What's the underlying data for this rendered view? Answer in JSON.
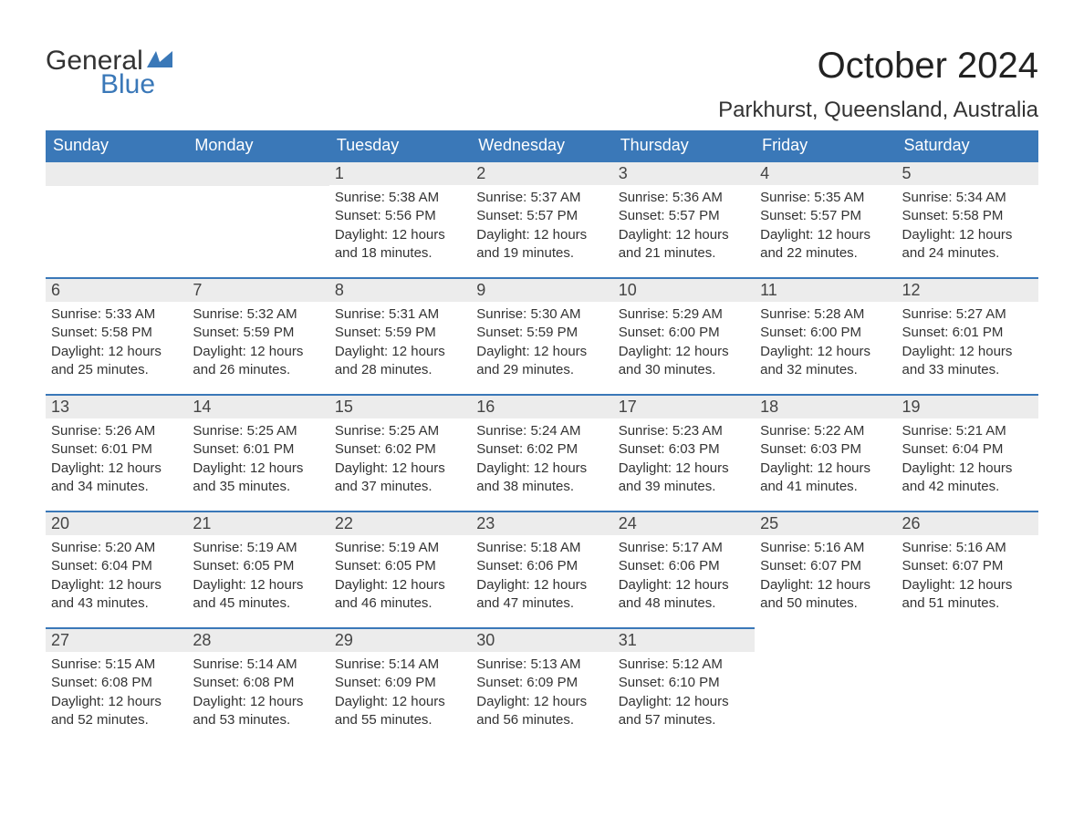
{
  "brand": {
    "word1": "General",
    "word2": "Blue",
    "color_text": "#333333",
    "color_blue": "#3a78b8"
  },
  "title": "October 2024",
  "location": "Parkhurst, Queensland, Australia",
  "colors": {
    "header_bg": "#3a78b8",
    "header_text": "#ffffff",
    "daynum_bg": "#ececec",
    "daynum_border": "#3a78b8",
    "body_text": "#333333",
    "page_bg": "#ffffff"
  },
  "day_headers": [
    "Sunday",
    "Monday",
    "Tuesday",
    "Wednesday",
    "Thursday",
    "Friday",
    "Saturday"
  ],
  "weeks": [
    [
      null,
      null,
      {
        "n": "1",
        "sunrise": "Sunrise: 5:38 AM",
        "sunset": "Sunset: 5:56 PM",
        "day1": "Daylight: 12 hours",
        "day2": "and 18 minutes."
      },
      {
        "n": "2",
        "sunrise": "Sunrise: 5:37 AM",
        "sunset": "Sunset: 5:57 PM",
        "day1": "Daylight: 12 hours",
        "day2": "and 19 minutes."
      },
      {
        "n": "3",
        "sunrise": "Sunrise: 5:36 AM",
        "sunset": "Sunset: 5:57 PM",
        "day1": "Daylight: 12 hours",
        "day2": "and 21 minutes."
      },
      {
        "n": "4",
        "sunrise": "Sunrise: 5:35 AM",
        "sunset": "Sunset: 5:57 PM",
        "day1": "Daylight: 12 hours",
        "day2": "and 22 minutes."
      },
      {
        "n": "5",
        "sunrise": "Sunrise: 5:34 AM",
        "sunset": "Sunset: 5:58 PM",
        "day1": "Daylight: 12 hours",
        "day2": "and 24 minutes."
      }
    ],
    [
      {
        "n": "6",
        "sunrise": "Sunrise: 5:33 AM",
        "sunset": "Sunset: 5:58 PM",
        "day1": "Daylight: 12 hours",
        "day2": "and 25 minutes."
      },
      {
        "n": "7",
        "sunrise": "Sunrise: 5:32 AM",
        "sunset": "Sunset: 5:59 PM",
        "day1": "Daylight: 12 hours",
        "day2": "and 26 minutes."
      },
      {
        "n": "8",
        "sunrise": "Sunrise: 5:31 AM",
        "sunset": "Sunset: 5:59 PM",
        "day1": "Daylight: 12 hours",
        "day2": "and 28 minutes."
      },
      {
        "n": "9",
        "sunrise": "Sunrise: 5:30 AM",
        "sunset": "Sunset: 5:59 PM",
        "day1": "Daylight: 12 hours",
        "day2": "and 29 minutes."
      },
      {
        "n": "10",
        "sunrise": "Sunrise: 5:29 AM",
        "sunset": "Sunset: 6:00 PM",
        "day1": "Daylight: 12 hours",
        "day2": "and 30 minutes."
      },
      {
        "n": "11",
        "sunrise": "Sunrise: 5:28 AM",
        "sunset": "Sunset: 6:00 PM",
        "day1": "Daylight: 12 hours",
        "day2": "and 32 minutes."
      },
      {
        "n": "12",
        "sunrise": "Sunrise: 5:27 AM",
        "sunset": "Sunset: 6:01 PM",
        "day1": "Daylight: 12 hours",
        "day2": "and 33 minutes."
      }
    ],
    [
      {
        "n": "13",
        "sunrise": "Sunrise: 5:26 AM",
        "sunset": "Sunset: 6:01 PM",
        "day1": "Daylight: 12 hours",
        "day2": "and 34 minutes."
      },
      {
        "n": "14",
        "sunrise": "Sunrise: 5:25 AM",
        "sunset": "Sunset: 6:01 PM",
        "day1": "Daylight: 12 hours",
        "day2": "and 35 minutes."
      },
      {
        "n": "15",
        "sunrise": "Sunrise: 5:25 AM",
        "sunset": "Sunset: 6:02 PM",
        "day1": "Daylight: 12 hours",
        "day2": "and 37 minutes."
      },
      {
        "n": "16",
        "sunrise": "Sunrise: 5:24 AM",
        "sunset": "Sunset: 6:02 PM",
        "day1": "Daylight: 12 hours",
        "day2": "and 38 minutes."
      },
      {
        "n": "17",
        "sunrise": "Sunrise: 5:23 AM",
        "sunset": "Sunset: 6:03 PM",
        "day1": "Daylight: 12 hours",
        "day2": "and 39 minutes."
      },
      {
        "n": "18",
        "sunrise": "Sunrise: 5:22 AM",
        "sunset": "Sunset: 6:03 PM",
        "day1": "Daylight: 12 hours",
        "day2": "and 41 minutes."
      },
      {
        "n": "19",
        "sunrise": "Sunrise: 5:21 AM",
        "sunset": "Sunset: 6:04 PM",
        "day1": "Daylight: 12 hours",
        "day2": "and 42 minutes."
      }
    ],
    [
      {
        "n": "20",
        "sunrise": "Sunrise: 5:20 AM",
        "sunset": "Sunset: 6:04 PM",
        "day1": "Daylight: 12 hours",
        "day2": "and 43 minutes."
      },
      {
        "n": "21",
        "sunrise": "Sunrise: 5:19 AM",
        "sunset": "Sunset: 6:05 PM",
        "day1": "Daylight: 12 hours",
        "day2": "and 45 minutes."
      },
      {
        "n": "22",
        "sunrise": "Sunrise: 5:19 AM",
        "sunset": "Sunset: 6:05 PM",
        "day1": "Daylight: 12 hours",
        "day2": "and 46 minutes."
      },
      {
        "n": "23",
        "sunrise": "Sunrise: 5:18 AM",
        "sunset": "Sunset: 6:06 PM",
        "day1": "Daylight: 12 hours",
        "day2": "and 47 minutes."
      },
      {
        "n": "24",
        "sunrise": "Sunrise: 5:17 AM",
        "sunset": "Sunset: 6:06 PM",
        "day1": "Daylight: 12 hours",
        "day2": "and 48 minutes."
      },
      {
        "n": "25",
        "sunrise": "Sunrise: 5:16 AM",
        "sunset": "Sunset: 6:07 PM",
        "day1": "Daylight: 12 hours",
        "day2": "and 50 minutes."
      },
      {
        "n": "26",
        "sunrise": "Sunrise: 5:16 AM",
        "sunset": "Sunset: 6:07 PM",
        "day1": "Daylight: 12 hours",
        "day2": "and 51 minutes."
      }
    ],
    [
      {
        "n": "27",
        "sunrise": "Sunrise: 5:15 AM",
        "sunset": "Sunset: 6:08 PM",
        "day1": "Daylight: 12 hours",
        "day2": "and 52 minutes."
      },
      {
        "n": "28",
        "sunrise": "Sunrise: 5:14 AM",
        "sunset": "Sunset: 6:08 PM",
        "day1": "Daylight: 12 hours",
        "day2": "and 53 minutes."
      },
      {
        "n": "29",
        "sunrise": "Sunrise: 5:14 AM",
        "sunset": "Sunset: 6:09 PM",
        "day1": "Daylight: 12 hours",
        "day2": "and 55 minutes."
      },
      {
        "n": "30",
        "sunrise": "Sunrise: 5:13 AM",
        "sunset": "Sunset: 6:09 PM",
        "day1": "Daylight: 12 hours",
        "day2": "and 56 minutes."
      },
      {
        "n": "31",
        "sunrise": "Sunrise: 5:12 AM",
        "sunset": "Sunset: 6:10 PM",
        "day1": "Daylight: 12 hours",
        "day2": "and 57 minutes."
      },
      null,
      null
    ]
  ]
}
